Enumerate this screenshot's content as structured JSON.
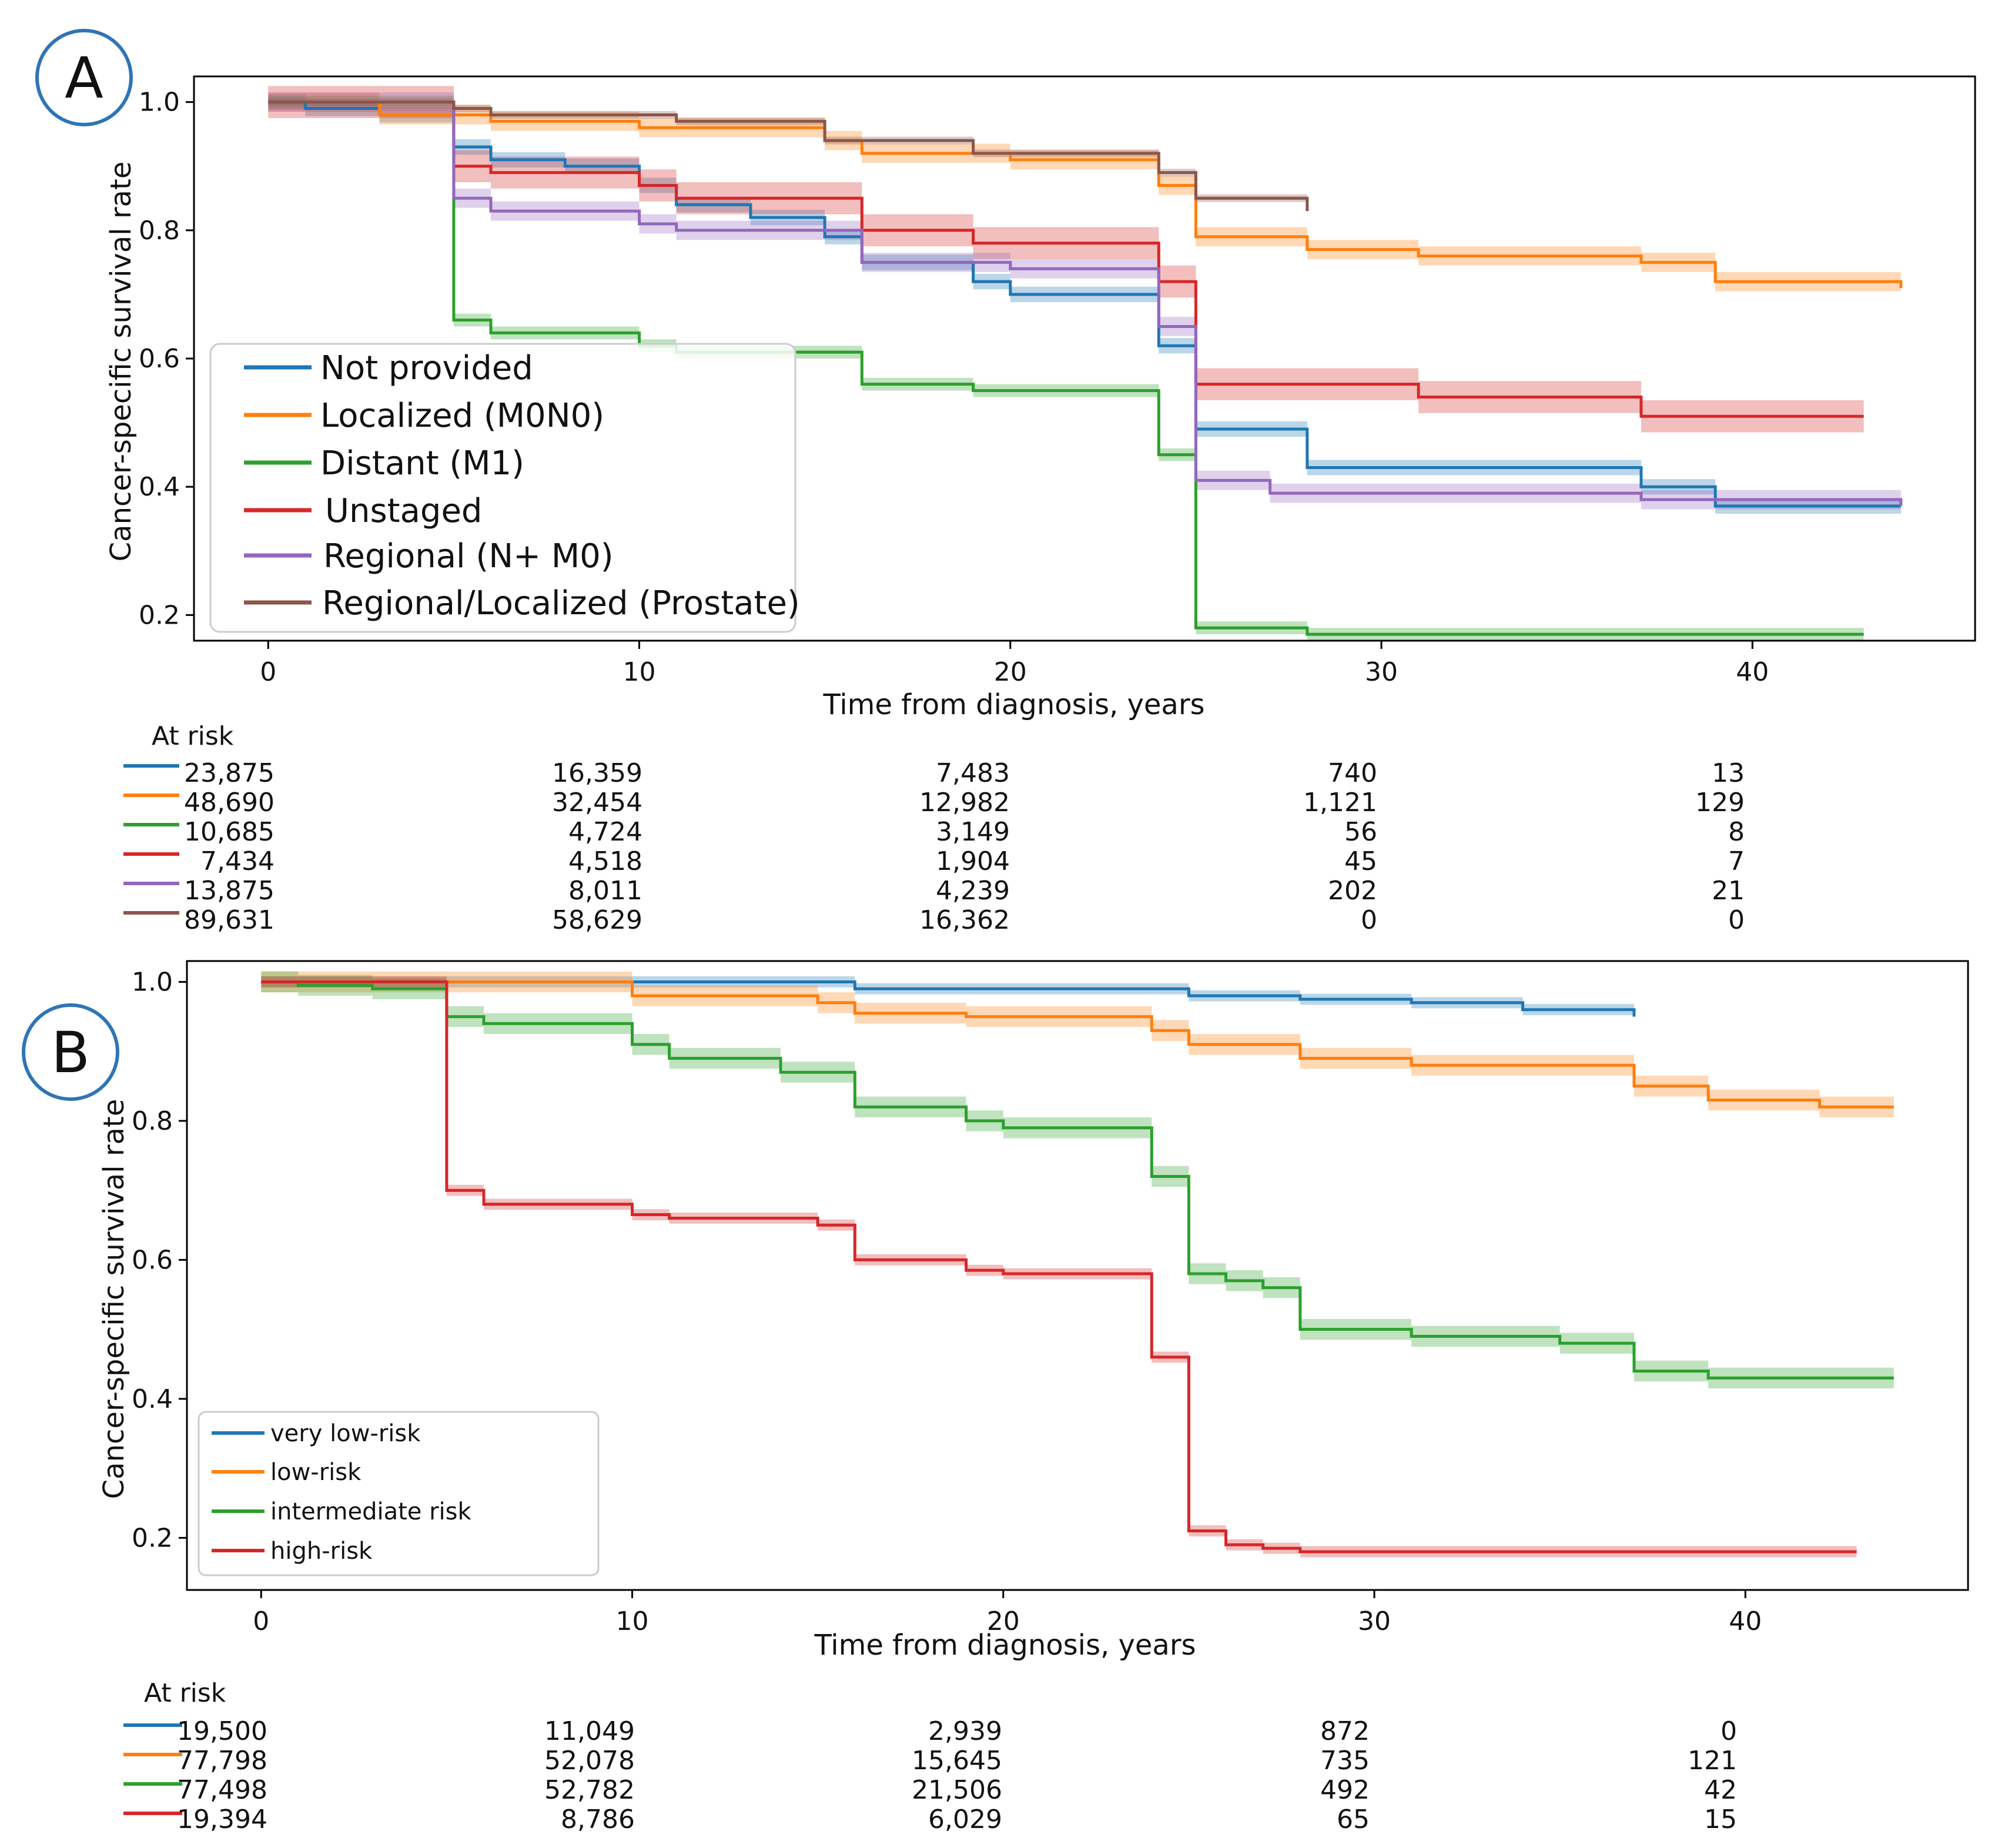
{
  "chart_data": [
    {
      "panel": "A",
      "type": "line",
      "subtype": "kaplan-meier step curves with confidence bands",
      "xlabel": "Time from diagnosis, years",
      "ylabel": "Cancer-specific survival rate",
      "xlim": [
        -2,
        46
      ],
      "ylim": [
        0.16,
        1.04
      ],
      "xticks": [
        "0",
        "10",
        "20",
        "30",
        "40"
      ],
      "yticks": [
        "0.2",
        "0.4",
        "0.6",
        "0.8",
        "1.0"
      ],
      "legend_position": "lower-left",
      "series": [
        {
          "name": "Not provided",
          "color": "#1f77b4",
          "x": [
            0,
            1,
            3,
            5,
            6,
            8,
            10,
            11,
            13,
            15,
            16,
            19,
            20,
            24,
            25,
            28,
            37,
            39,
            44
          ],
          "y": [
            1.0,
            0.99,
            0.98,
            0.93,
            0.91,
            0.9,
            0.87,
            0.84,
            0.82,
            0.79,
            0.75,
            0.72,
            0.7,
            0.62,
            0.49,
            0.43,
            0.4,
            0.37,
            0.37
          ],
          "band": 0.012
        },
        {
          "name": "Localized (M0N0)",
          "color": "#ff7f0e",
          "x": [
            0,
            3,
            6,
            10,
            15,
            16,
            20,
            24,
            25,
            28,
            31,
            37,
            39,
            44
          ],
          "y": [
            1.0,
            0.98,
            0.97,
            0.96,
            0.94,
            0.92,
            0.91,
            0.87,
            0.79,
            0.77,
            0.76,
            0.75,
            0.72,
            0.71
          ],
          "band": 0.015
        },
        {
          "name": "Distant (M1)",
          "color": "#2ca02c",
          "x": [
            0,
            5,
            6,
            10,
            11,
            16,
            19,
            24,
            25,
            28,
            43
          ],
          "y": [
            1.0,
            0.66,
            0.64,
            0.62,
            0.61,
            0.56,
            0.55,
            0.45,
            0.18,
            0.17,
            0.17
          ],
          "band": 0.01
        },
        {
          "name": "Unstaged",
          "color": "#d62728",
          "x": [
            0,
            5,
            6,
            10,
            11,
            16,
            19,
            24,
            25,
            31,
            37,
            43
          ],
          "y": [
            1.0,
            0.9,
            0.89,
            0.87,
            0.85,
            0.8,
            0.78,
            0.72,
            0.56,
            0.54,
            0.51,
            0.51
          ],
          "band": 0.025
        },
        {
          "name": "Regional (N+ M0)",
          "color": "#9467bd",
          "x": [
            0,
            5,
            6,
            10,
            11,
            16,
            20,
            24,
            25,
            27,
            37,
            44
          ],
          "y": [
            1.0,
            0.85,
            0.83,
            0.81,
            0.8,
            0.75,
            0.74,
            0.65,
            0.41,
            0.39,
            0.38,
            0.37
          ],
          "band": 0.015
        },
        {
          "name": "Regional/Localized (Prostate)",
          "color": "#8c564b",
          "x": [
            0,
            5,
            6,
            11,
            15,
            19,
            24,
            25,
            28
          ],
          "y": [
            1.0,
            0.99,
            0.98,
            0.97,
            0.94,
            0.92,
            0.89,
            0.85,
            0.83
          ],
          "band": 0.006
        }
      ],
      "at_risk": {
        "title": "At risk",
        "times": [
          0,
          10,
          20,
          30,
          40
        ],
        "rows": [
          [
            "23,875",
            "16,359",
            "7,483",
            "740",
            "13"
          ],
          [
            "48,690",
            "32,454",
            "12,982",
            "1,121",
            "129"
          ],
          [
            "10,685",
            "4,724",
            "3,149",
            "56",
            "8"
          ],
          [
            "7,434",
            "4,518",
            "1,904",
            "45",
            "7"
          ],
          [
            "13,875",
            "8,011",
            "4,239",
            "202",
            "21"
          ],
          [
            "89,631",
            "58,629",
            "16,362",
            "0",
            "0"
          ]
        ]
      }
    },
    {
      "panel": "B",
      "type": "line",
      "subtype": "kaplan-meier step curves with confidence bands",
      "xlabel": "Time from diagnosis, years",
      "ylabel": "Cancer-specific survival rate",
      "xlim": [
        -2,
        46
      ],
      "ylim": [
        0.125,
        1.03
      ],
      "xticks": [
        "0",
        "10",
        "20",
        "30",
        "40"
      ],
      "yticks": [
        "0.2",
        "0.4",
        "0.6",
        "0.8",
        "1.0"
      ],
      "legend_position": "lower-left",
      "series": [
        {
          "name": "very low-risk",
          "color": "#1f77b4",
          "x": [
            0,
            16,
            25,
            28,
            31,
            34,
            37
          ],
          "y": [
            1.0,
            0.99,
            0.98,
            0.975,
            0.97,
            0.96,
            0.95
          ],
          "band": 0.008
        },
        {
          "name": "low-risk",
          "color": "#ff7f0e",
          "x": [
            0,
            10,
            15,
            16,
            19,
            24,
            25,
            28,
            31,
            37,
            39,
            42,
            44
          ],
          "y": [
            1.0,
            0.98,
            0.97,
            0.955,
            0.95,
            0.93,
            0.91,
            0.89,
            0.88,
            0.85,
            0.83,
            0.82,
            0.82
          ],
          "band": 0.015
        },
        {
          "name": "intermediate risk",
          "color": "#2ca02c",
          "x": [
            0,
            1,
            3,
            5,
            6,
            10,
            11,
            14,
            16,
            19,
            20,
            24,
            25,
            26,
            27,
            28,
            31,
            35,
            37,
            39,
            44
          ],
          "y": [
            1.0,
            0.995,
            0.99,
            0.95,
            0.94,
            0.91,
            0.89,
            0.87,
            0.82,
            0.8,
            0.79,
            0.72,
            0.58,
            0.57,
            0.56,
            0.5,
            0.49,
            0.48,
            0.44,
            0.43,
            0.43
          ],
          "band": 0.015
        },
        {
          "name": "high-risk",
          "color": "#d62728",
          "x": [
            0,
            5,
            6,
            10,
            11,
            15,
            16,
            19,
            20,
            24,
            25,
            26,
            27,
            28,
            43
          ],
          "y": [
            1.0,
            0.7,
            0.68,
            0.665,
            0.66,
            0.65,
            0.6,
            0.585,
            0.58,
            0.46,
            0.21,
            0.19,
            0.185,
            0.18,
            0.18
          ],
          "band": 0.008
        }
      ],
      "at_risk": {
        "title": "At risk",
        "times": [
          0,
          10,
          20,
          30,
          40
        ],
        "rows": [
          [
            "19,500",
            "11,049",
            "2,939",
            "872",
            "0"
          ],
          [
            "77,798",
            "52,078",
            "15,645",
            "735",
            "121"
          ],
          [
            "77,498",
            "52,782",
            "21,506",
            "492",
            "42"
          ],
          [
            "19,394",
            "8,786",
            "6,029",
            "65",
            "15"
          ]
        ]
      }
    }
  ]
}
